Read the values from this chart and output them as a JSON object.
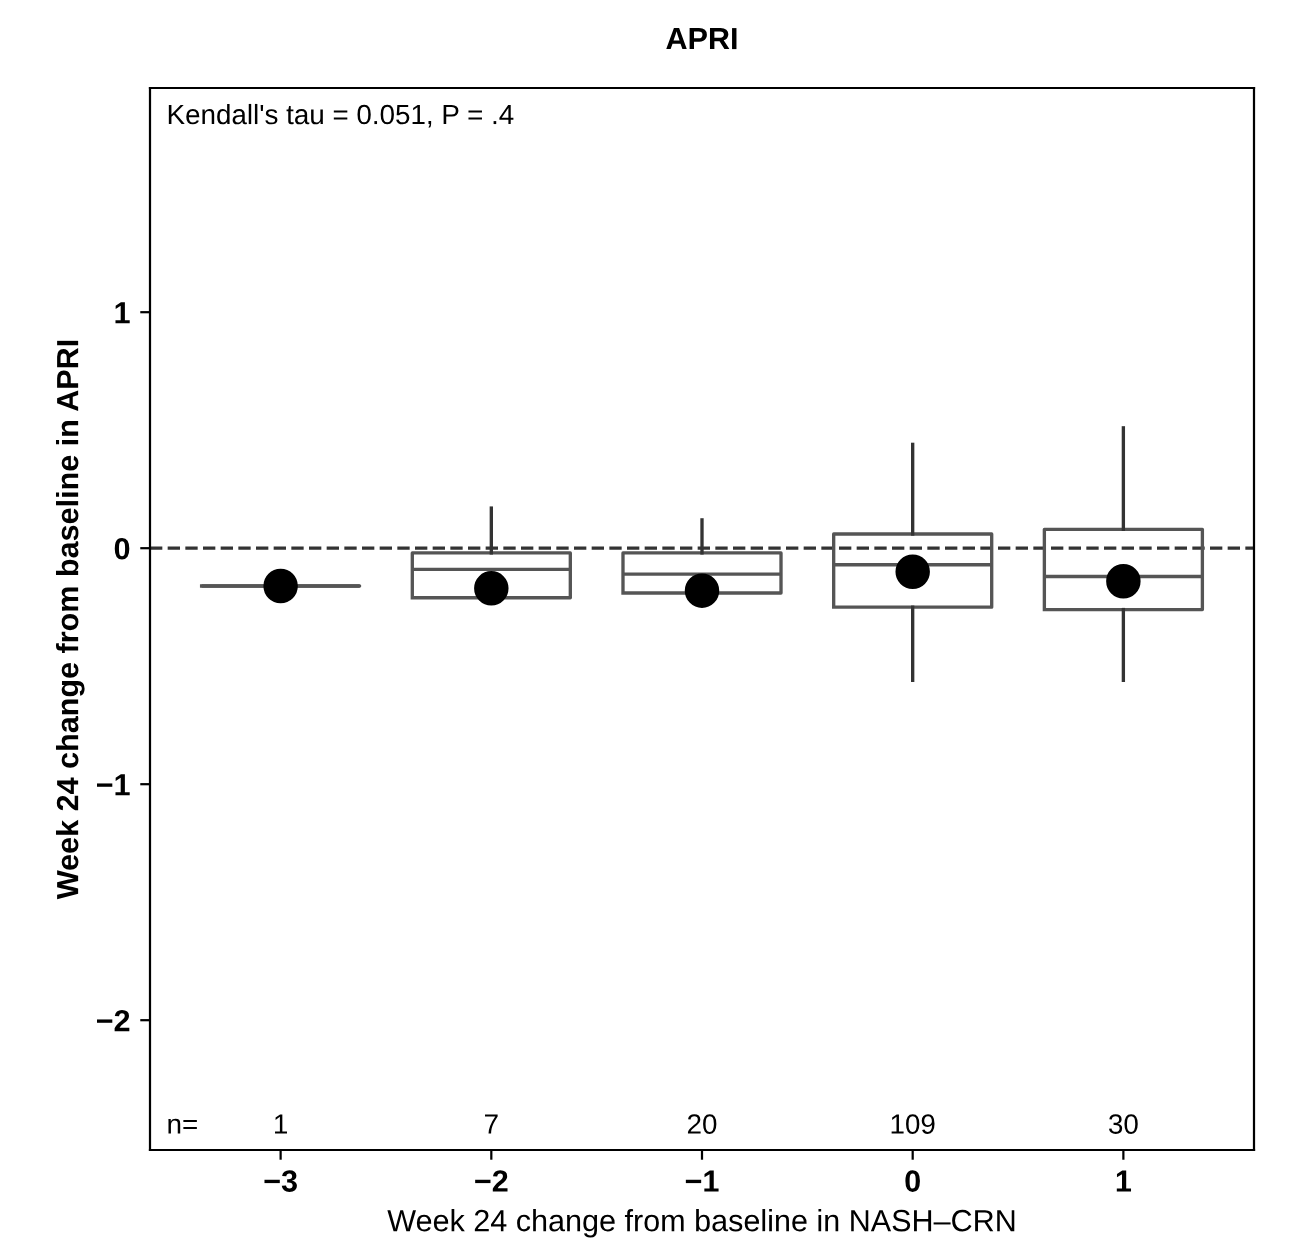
{
  "chart_data": {
    "type": "box",
    "title": "APRI",
    "xlabel": "Week 24 change from baseline in NASH–CRN",
    "ylabel": "Week 24 change from baseline in APRI",
    "categories": [
      "−3",
      "−2",
      "−1",
      "0",
      "1"
    ],
    "boxes": [
      {
        "low": -0.16,
        "q1": -0.16,
        "median": -0.16,
        "q3": -0.16,
        "high": -0.16
      },
      {
        "low": -0.21,
        "q1": -0.21,
        "median": -0.09,
        "q3": -0.02,
        "high": 0.17
      },
      {
        "low": -0.19,
        "q1": -0.19,
        "median": -0.11,
        "q3": -0.02,
        "high": 0.12
      },
      {
        "low": -0.56,
        "q1": -0.25,
        "median": -0.07,
        "q3": 0.06,
        "high": 0.44
      },
      {
        "low": -0.56,
        "q1": -0.26,
        "median": -0.12,
        "q3": 0.08,
        "high": 0.51
      }
    ],
    "series": [
      {
        "type": "scatter",
        "x": [
          "−3",
          "−2",
          "−1",
          "0",
          "1"
        ],
        "values": [
          -0.16,
          -0.17,
          -0.18,
          -0.1,
          -0.14
        ],
        "color": "#000000"
      }
    ],
    "ylim": [
      -2.55,
      1.95
    ],
    "yticks": [
      {
        "value": -2,
        "label": "−2"
      },
      {
        "value": -1,
        "label": "−1"
      },
      0,
      1
    ],
    "ref_lines": [
      {
        "axis": "y",
        "value": 0,
        "line_style": "dashed",
        "color": "#333333"
      }
    ],
    "annotations": [
      "Kendall's tau = 0.051, P = .4",
      "n=",
      "1",
      "7",
      "20",
      "109",
      "30"
    ],
    "grid": false,
    "legend": false,
    "marker": "circle"
  }
}
